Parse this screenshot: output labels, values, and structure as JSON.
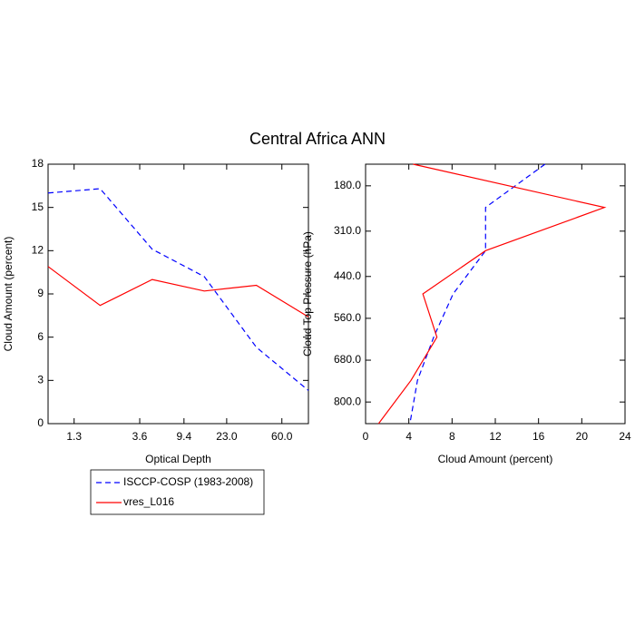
{
  "title": "Central Africa ANN",
  "chart_data": [
    {
      "type": "line",
      "xlabel": "Optical Depth",
      "ylabel": "Cloud Amount (percent)",
      "x": [
        0,
        1,
        2,
        3,
        4,
        5
      ],
      "xlim": [
        0,
        5
      ],
      "xticks": [
        {
          "value": 0.5,
          "label": "1.3"
        },
        {
          "value": 1.76,
          "label": "3.6"
        },
        {
          "value": 2.61,
          "label": "9.4"
        },
        {
          "value": 3.43,
          "label": "23.0"
        },
        {
          "value": 4.49,
          "label": "60.0"
        }
      ],
      "ylim": [
        0,
        18
      ],
      "yticks": [
        0,
        3,
        6,
        9,
        12,
        15,
        18
      ],
      "series": [
        {
          "name": "ISCCP-COSP (1983-2008)",
          "color": "#0000ff",
          "dash": "dashed",
          "values": [
            16.0,
            16.3,
            12.1,
            10.2,
            5.3,
            2.3
          ]
        },
        {
          "name": "vres_L016",
          "color": "#ff0000",
          "dash": "solid",
          "values": [
            10.9,
            8.2,
            10.0,
            9.2,
            9.6,
            7.4
          ]
        }
      ]
    },
    {
      "type": "line",
      "orientation": "horizontal",
      "xlabel": "Cloud Amount (percent)",
      "ylabel": "Cloud Top Pressure (hPa)",
      "y": [
        118,
        242,
        366,
        490,
        614,
        738,
        862
      ],
      "ylim": [
        118,
        862
      ],
      "y_reversed": true,
      "yticks": [
        {
          "value": 180,
          "label": "180.0"
        },
        {
          "value": 310,
          "label": "310.0"
        },
        {
          "value": 440,
          "label": "440.0"
        },
        {
          "value": 560,
          "label": "560.0"
        },
        {
          "value": 680,
          "label": "680.0"
        },
        {
          "value": 800,
          "label": "800.0"
        }
      ],
      "xlim": [
        0,
        24
      ],
      "xticks": [
        0,
        4,
        8,
        12,
        16,
        20,
        24
      ],
      "series": [
        {
          "color": "#0000ff",
          "dash": "dashed",
          "values": [
            16.6,
            11.1,
            11.1,
            8.1,
            6.3,
            4.8,
            4.1
          ]
        },
        {
          "color": "#ff0000",
          "dash": "solid",
          "values": [
            4.4,
            22.1,
            11.1,
            5.3,
            6.6,
            4.2,
            1.2
          ]
        }
      ]
    }
  ]
}
